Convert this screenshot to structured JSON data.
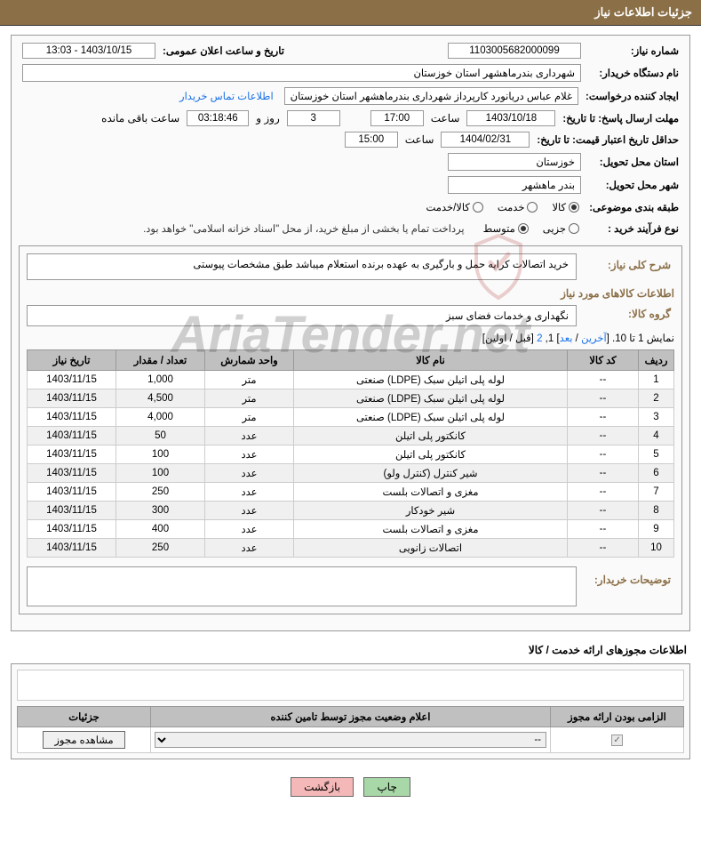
{
  "header": {
    "title": "جزئیات اطلاعات نیاز"
  },
  "fields": {
    "need_no_label": "شماره نیاز:",
    "need_no": "1103005682000099",
    "announce_label": "تاریخ و ساعت اعلان عمومی:",
    "announce_value": "1403/10/15 - 13:03",
    "buyer_org_label": "نام دستگاه خریدار:",
    "buyer_org": "شهرداری بندرماهشهر استان خوزستان",
    "requester_label": "ایجاد کننده درخواست:",
    "requester": "غلام عباس دریانورد کارپرداز شهرداری بندرماهشهر استان خوزستان",
    "contact_link": "اطلاعات تماس خریدار",
    "deadline_label": "مهلت ارسال پاسخ: تا تاریخ:",
    "deadline_date": "1403/10/18",
    "time_label": "ساعت",
    "deadline_time": "17:00",
    "remaining_days": "3",
    "days_and": "روز و",
    "remaining_time": "03:18:46",
    "remaining_label": "ساعت باقی مانده",
    "validity_label": "حداقل تاریخ اعتبار قیمت: تا تاریخ:",
    "validity_date": "1404/02/31",
    "validity_time": "15:00",
    "province_label": "استان محل تحویل:",
    "province": "خوزستان",
    "city_label": "شهر محل تحویل:",
    "city": "بندر ماهشهر",
    "category_label": "طبقه بندی موضوعی:",
    "cat_opt1": "کالا",
    "cat_opt2": "خدمت",
    "cat_opt3": "کالا/خدمت",
    "process_label": "نوع فرآیند خرید :",
    "proc_opt1": "جزیی",
    "proc_opt2": "متوسط",
    "payment_note": "پرداخت تمام یا بخشی از مبلغ خرید، از محل \"اسناد خزانه اسلامی\" خواهد بود.",
    "desc_label": "شرح کلی نیاز:",
    "desc_value": "خرید اتصالات کرایه حمل و بارگیری به عهده برنده استعلام میباشد طبق مشخصات پیوستی",
    "goods_info_label": "اطلاعات کالاهای مورد نیاز",
    "group_label": "گروه کالا:",
    "group_value": "نگهداری و خدمات فضای سبز",
    "pager_prefix": "نمایش 1 تا 10. [",
    "pager_last": "آخرین",
    "pager_sep1": " / ",
    "pager_next": "بعد",
    "pager_mid": "] 1, ",
    "pager_2": "2",
    "pager_end": " [قبل / اولین]",
    "buyer_notes_label": "توضیحات خریدار:",
    "license_section": "اطلاعات مجوزهای ارائه خدمت / کالا",
    "btn_print": "چاپ",
    "btn_back": "بازگشت"
  },
  "table": {
    "headers": {
      "row": "ردیف",
      "code": "کد کالا",
      "name": "نام کالا",
      "unit": "واحد شمارش",
      "qty": "تعداد / مقدار",
      "date": "تاریخ نیاز"
    },
    "rows": [
      {
        "n": "1",
        "code": "--",
        "name": "لوله پلی اتیلن سبک (LDPE) صنعتی",
        "unit": "متر",
        "qty": "1,000",
        "date": "1403/11/15"
      },
      {
        "n": "2",
        "code": "--",
        "name": "لوله پلی اتیلن سبک (LDPE) صنعتی",
        "unit": "متر",
        "qty": "4,500",
        "date": "1403/11/15"
      },
      {
        "n": "3",
        "code": "--",
        "name": "لوله پلی اتیلن سبک (LDPE) صنعتی",
        "unit": "متر",
        "qty": "4,000",
        "date": "1403/11/15"
      },
      {
        "n": "4",
        "code": "--",
        "name": "کانکتور پلی اتیلن",
        "unit": "عدد",
        "qty": "50",
        "date": "1403/11/15"
      },
      {
        "n": "5",
        "code": "--",
        "name": "کانکتور پلی اتیلن",
        "unit": "عدد",
        "qty": "100",
        "date": "1403/11/15"
      },
      {
        "n": "6",
        "code": "--",
        "name": "شیر کنترل (کنترل ولو)",
        "unit": "عدد",
        "qty": "100",
        "date": "1403/11/15"
      },
      {
        "n": "7",
        "code": "--",
        "name": "مغزی و اتصالات بلست",
        "unit": "عدد",
        "qty": "250",
        "date": "1403/11/15"
      },
      {
        "n": "8",
        "code": "--",
        "name": "شیر خودکار",
        "unit": "عدد",
        "qty": "300",
        "date": "1403/11/15"
      },
      {
        "n": "9",
        "code": "--",
        "name": "مغزی و اتصالات بلست",
        "unit": "عدد",
        "qty": "400",
        "date": "1403/11/15"
      },
      {
        "n": "10",
        "code": "--",
        "name": "اتصالات زانویی",
        "unit": "عدد",
        "qty": "250",
        "date": "1403/11/15"
      }
    ]
  },
  "license": {
    "headers": {
      "mandatory": "الزامی بودن ارائه مجوز",
      "status": "اعلام وضعیت مجوز توسط تامین کننده",
      "details": "جزئیات"
    },
    "select_value": "--",
    "view_btn": "مشاهده مجوز"
  },
  "watermark": {
    "text": "AriaTender.net"
  }
}
